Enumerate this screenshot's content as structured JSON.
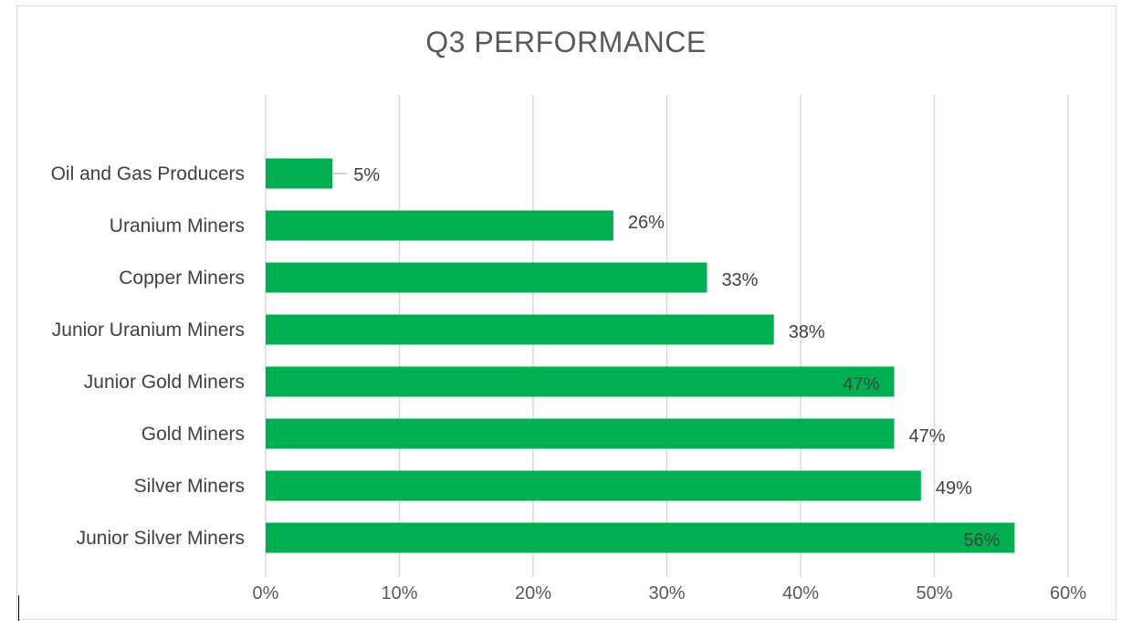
{
  "chart_data": {
    "type": "bar",
    "orientation": "horizontal",
    "title": "Q3 PERFORMANCE",
    "xlabel": "",
    "ylabel": "",
    "categories": [
      "Oil and Gas Producers",
      "Uranium Miners",
      "Copper Miners",
      "Junior Uranium Miners",
      "Junior Gold Miners",
      "Gold Miners",
      "Silver Miners",
      "Junior Silver Miners"
    ],
    "values": [
      5,
      26,
      33,
      38,
      47,
      47,
      49,
      56
    ],
    "data_labels": [
      "5%",
      "26%",
      "33%",
      "38%",
      "47%",
      "47%",
      "49%",
      "56%"
    ],
    "xlim": [
      0,
      60
    ],
    "x_ticks": [
      0,
      10,
      20,
      30,
      40,
      50,
      60
    ],
    "x_tick_labels": [
      "0%",
      "10%",
      "20%",
      "30%",
      "40%",
      "50%",
      "60%"
    ],
    "grid": true,
    "legend": "none",
    "bar_color": "#00B050"
  }
}
